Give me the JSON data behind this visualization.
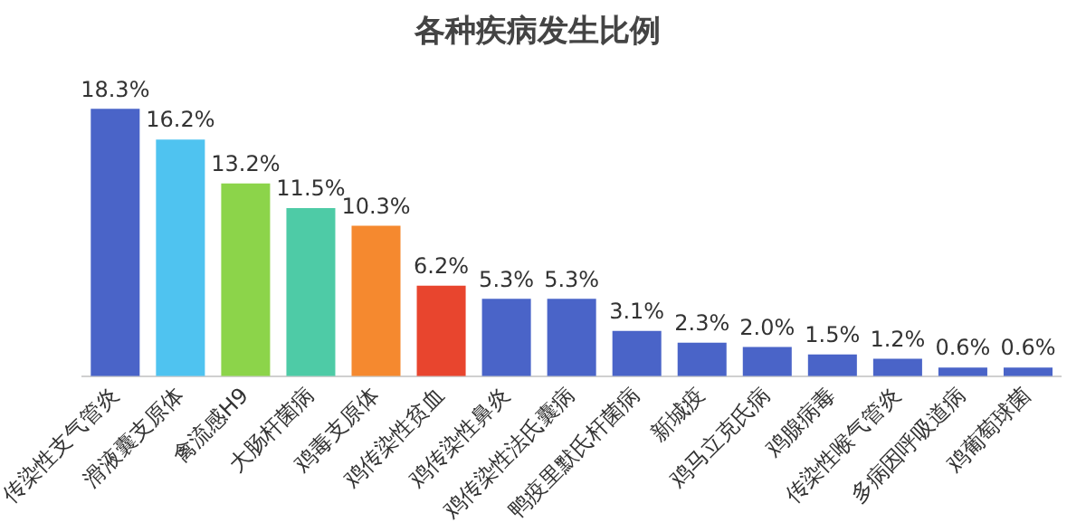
{
  "chart_data": {
    "type": "bar",
    "title": "各种疾病发生比例",
    "categories": [
      "传染性支气管炎",
      "滑液囊支原体",
      "禽流感H9",
      "大肠杆菌病",
      "鸡毒支原体",
      "鸡传染性贫血",
      "鸡传染性鼻炎",
      "鸡传染性法氏囊病",
      "鸭疫里默氏杆菌病",
      "新城疫",
      "鸡马立克氏病",
      "鸡腺病毒",
      "传染性喉气管炎",
      "多病因呼吸道病",
      "鸡葡萄球菌"
    ],
    "values": [
      18.3,
      16.2,
      13.2,
      11.5,
      10.3,
      6.2,
      5.3,
      5.3,
      3.1,
      2.3,
      2.0,
      1.5,
      1.2,
      0.6,
      0.6
    ],
    "value_labels": [
      "18.3%",
      "16.2%",
      "13.2%",
      "11.5%",
      "10.3%",
      "6.2%",
      "5.3%",
      "5.3%",
      "3.1%",
      "2.3%",
      "2.0%",
      "1.5%",
      "1.2%",
      "0.6%",
      "0.6%"
    ],
    "colors": [
      "#4a64c8",
      "#4fc3f0",
      "#8cd44a",
      "#4ecba6",
      "#f5892f",
      "#e8452e",
      "#4a64c8",
      "#4a64c8",
      "#4a64c8",
      "#4a64c8",
      "#4a64c8",
      "#4a64c8",
      "#4a64c8",
      "#4a64c8",
      "#4a64c8"
    ],
    "grid": false,
    "legend": false
  }
}
